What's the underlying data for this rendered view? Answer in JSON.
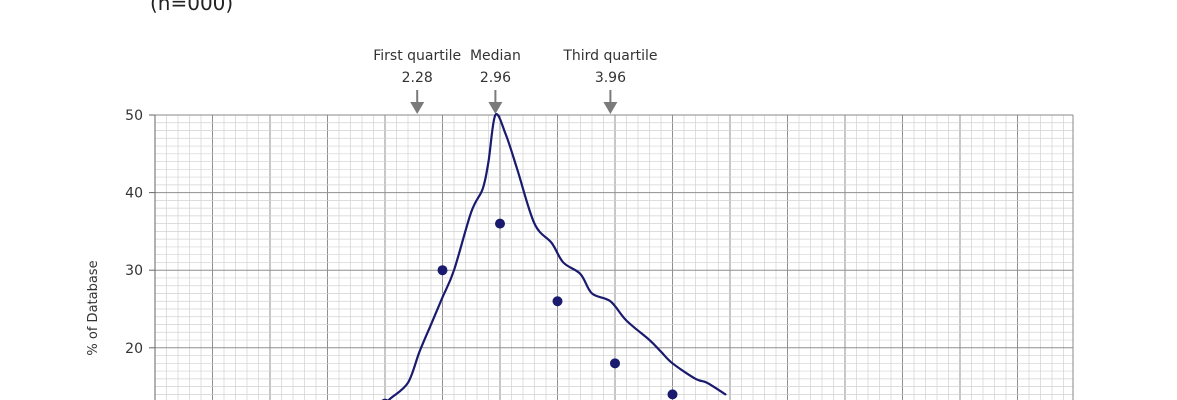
{
  "header": {
    "partial_text": "(n=000)"
  },
  "chart_data": {
    "type": "line",
    "title": "",
    "xlabel": "",
    "ylabel": "% of Database",
    "ylim": [
      0,
      50
    ],
    "yticks": [
      20,
      30,
      40,
      50
    ],
    "grid": true,
    "legend": "none",
    "series": [
      {
        "color": "#1a1a6e",
        "x": [
          2.0,
          2.05,
          2.2,
          2.3,
          2.4,
          2.5,
          2.6,
          2.75,
          2.85,
          2.9,
          2.96,
          3.05,
          3.15,
          3.3,
          3.45,
          3.55,
          3.7,
          3.8,
          3.96,
          4.1,
          4.3,
          4.4,
          4.5,
          4.7,
          4.8,
          4.96
        ],
        "y": [
          12.8,
          13.5,
          15.5,
          19.5,
          23,
          26.5,
          30,
          37.5,
          40.5,
          44,
          50,
          47.5,
          43,
          36,
          33.5,
          31,
          29.5,
          27,
          26,
          23.5,
          21,
          19.5,
          18,
          16,
          15.5,
          14
        ]
      }
    ],
    "markers": [
      {
        "x": 2.0,
        "y": 12.8
      },
      {
        "x": 2.5,
        "y": 30
      },
      {
        "x": 3.0,
        "y": 36
      },
      {
        "x": 3.5,
        "y": 26
      },
      {
        "x": 4.0,
        "y": 18
      },
      {
        "x": 4.5,
        "y": 14
      }
    ],
    "annotations": [
      {
        "id": "q1",
        "label": "First quartile",
        "value_label": "2.28",
        "x": 2.28
      },
      {
        "id": "median",
        "label": "Median",
        "value_label": "2.96",
        "x": 2.96
      },
      {
        "id": "q3",
        "label": "Third quartile",
        "value_label": "3.96",
        "x": 3.96
      }
    ]
  }
}
